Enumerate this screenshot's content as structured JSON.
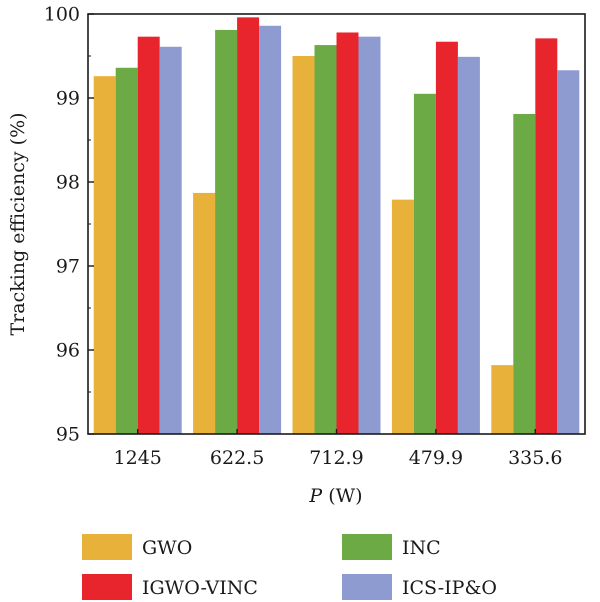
{
  "chart_data": {
    "type": "bar",
    "title": "",
    "xlabel": "P (W)",
    "xlabel_parts": {
      "var": "P",
      "unit": "(W)"
    },
    "ylabel": "Tracking efficiency (%)",
    "ylim": [
      95,
      100
    ],
    "yticks": [
      95,
      96,
      97,
      98,
      99,
      100
    ],
    "grid": false,
    "legend_position": "bottom",
    "categories": [
      "1245",
      "622.5",
      "712.9",
      "479.9",
      "335.6"
    ],
    "series": [
      {
        "name": "GWO",
        "color": "#E8B23A",
        "values": [
          99.26,
          97.87,
          99.5,
          97.79,
          95.82
        ]
      },
      {
        "name": "INC",
        "color": "#6BAA45",
        "values": [
          99.36,
          99.81,
          99.63,
          99.05,
          98.81
        ]
      },
      {
        "name": "IGWO-VINC",
        "color": "#E8242D",
        "values": [
          99.73,
          99.96,
          99.78,
          99.67,
          99.71
        ]
      },
      {
        "name": "ICS-IP&O",
        "color": "#8E9BD0",
        "values": [
          99.61,
          99.86,
          99.73,
          99.49,
          99.33
        ]
      }
    ]
  }
}
